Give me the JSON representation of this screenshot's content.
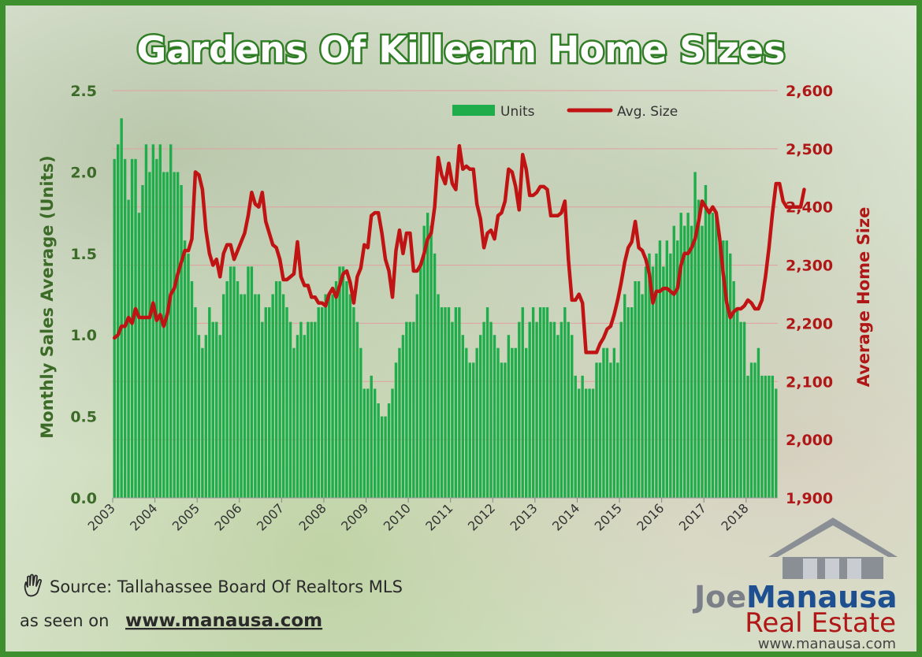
{
  "chart_data": {
    "type": "bar",
    "title": "Gardens Of Killearn Home Sizes",
    "ylabel": "Monthly Sales Average (Units)",
    "y2label": "Average Home Size",
    "ylim": [
      0,
      2.5
    ],
    "y2lim": [
      1900,
      2600
    ],
    "yticks": [
      "0.0",
      "0.5",
      "1.0",
      "1.5",
      "2.0",
      "2.5"
    ],
    "y2ticks": [
      "1,900",
      "2,000",
      "2,100",
      "2,200",
      "2,300",
      "2,400",
      "2,500",
      "2,600"
    ],
    "xticks": [
      "2003",
      "2004",
      "2005",
      "2006",
      "2007",
      "2008",
      "2009",
      "2010",
      "2011",
      "2012",
      "2013",
      "2014",
      "2015",
      "2016",
      "2017",
      "2018"
    ],
    "x_start": "2003-01",
    "grid": true,
    "legend_position": "top-center",
    "series": [
      {
        "name": "Units",
        "type": "bar",
        "axis": "left",
        "color": "#1fad4b",
        "values": [
          2.08,
          2.17,
          2.33,
          2.08,
          1.83,
          2.08,
          2.08,
          1.75,
          1.92,
          2.17,
          2.0,
          2.17,
          2.08,
          2.17,
          2.0,
          2.0,
          2.17,
          2.0,
          2.0,
          1.92,
          1.58,
          1.5,
          1.33,
          1.17,
          1.0,
          0.92,
          1.0,
          1.17,
          1.08,
          1.08,
          1.0,
          1.25,
          1.33,
          1.42,
          1.42,
          1.33,
          1.25,
          1.25,
          1.42,
          1.42,
          1.25,
          1.25,
          1.08,
          1.17,
          1.17,
          1.25,
          1.33,
          1.33,
          1.25,
          1.17,
          1.08,
          0.92,
          1.0,
          1.08,
          1.0,
          1.08,
          1.08,
          1.08,
          1.17,
          1.17,
          1.25,
          1.25,
          1.25,
          1.33,
          1.42,
          1.42,
          1.33,
          1.25,
          1.17,
          1.08,
          0.92,
          0.67,
          0.67,
          0.75,
          0.67,
          0.58,
          0.5,
          0.5,
          0.58,
          0.67,
          0.83,
          0.92,
          1.0,
          1.08,
          1.08,
          1.08,
          1.25,
          1.42,
          1.67,
          1.75,
          1.67,
          1.5,
          1.25,
          1.17,
          1.17,
          1.17,
          1.08,
          1.17,
          1.17,
          1.0,
          0.92,
          0.83,
          0.83,
          0.92,
          1.0,
          1.08,
          1.17,
          1.08,
          1.0,
          0.92,
          0.83,
          0.83,
          1.0,
          0.92,
          0.92,
          1.08,
          1.17,
          0.92,
          1.08,
          1.17,
          1.08,
          1.17,
          1.17,
          1.17,
          1.08,
          1.08,
          1.0,
          1.08,
          1.17,
          1.08,
          1.0,
          0.75,
          0.67,
          0.75,
          0.67,
          0.67,
          0.67,
          0.83,
          0.83,
          0.92,
          0.92,
          0.83,
          0.92,
          0.83,
          1.08,
          1.25,
          1.17,
          1.17,
          1.33,
          1.33,
          1.25,
          1.42,
          1.5,
          1.42,
          1.5,
          1.58,
          1.42,
          1.58,
          1.5,
          1.67,
          1.58,
          1.75,
          1.67,
          1.75,
          1.67,
          2.0,
          1.83,
          1.67,
          1.92,
          1.75,
          1.75,
          1.75,
          1.58,
          1.58,
          1.58,
          1.5,
          1.33,
          1.17,
          1.08,
          1.08,
          0.75,
          0.83,
          0.83,
          0.92,
          0.75,
          0.75,
          0.75,
          0.75,
          0.67
        ]
      },
      {
        "name": "Avg. Size",
        "type": "line",
        "axis": "right",
        "color": "#c01414",
        "values": [
          2175,
          2180,
          2195,
          2195,
          2210,
          2200,
          2225,
          2210,
          2210,
          2210,
          2210,
          2235,
          2205,
          2215,
          2195,
          2215,
          2250,
          2260,
          2285,
          2305,
          2325,
          2325,
          2345,
          2460,
          2455,
          2430,
          2360,
          2320,
          2300,
          2310,
          2280,
          2320,
          2335,
          2335,
          2310,
          2325,
          2340,
          2355,
          2385,
          2425,
          2405,
          2400,
          2425,
          2375,
          2355,
          2335,
          2330,
          2310,
          2275,
          2275,
          2280,
          2285,
          2340,
          2280,
          2265,
          2265,
          2245,
          2245,
          2235,
          2235,
          2230,
          2250,
          2260,
          2245,
          2265,
          2285,
          2290,
          2270,
          2235,
          2280,
          2295,
          2335,
          2330,
          2385,
          2390,
          2390,
          2355,
          2310,
          2290,
          2245,
          2325,
          2360,
          2320,
          2355,
          2355,
          2290,
          2290,
          2300,
          2320,
          2345,
          2355,
          2400,
          2485,
          2455,
          2440,
          2475,
          2440,
          2430,
          2505,
          2465,
          2470,
          2465,
          2465,
          2405,
          2380,
          2330,
          2355,
          2360,
          2345,
          2385,
          2390,
          2410,
          2465,
          2460,
          2435,
          2395,
          2490,
          2465,
          2420,
          2420,
          2425,
          2435,
          2435,
          2430,
          2385,
          2385,
          2385,
          2390,
          2410,
          2310,
          2240,
          2240,
          2250,
          2235,
          2150,
          2150,
          2150,
          2150,
          2165,
          2175,
          2190,
          2195,
          2215,
          2240,
          2270,
          2305,
          2330,
          2340,
          2375,
          2330,
          2325,
          2310,
          2285,
          2235,
          2255,
          2255,
          2260,
          2260,
          2255,
          2250,
          2260,
          2300,
          2320,
          2320,
          2330,
          2345,
          2375,
          2410,
          2400,
          2390,
          2400,
          2390,
          2345,
          2285,
          2235,
          2210,
          2220,
          2225,
          2225,
          2230,
          2240,
          2235,
          2225,
          2225,
          2240,
          2280,
          2330,
          2390,
          2440,
          2440,
          2410,
          2400,
          2400,
          2400,
          2400,
          2400,
          2430
        ]
      }
    ]
  },
  "source": {
    "text": "Source: Tallahassee Board Of Realtors MLS",
    "seen_on": "as seen on",
    "website": "www.manausa.com",
    "icon": "hand-icon"
  },
  "logo": {
    "joe": "Joe",
    "manausa": "Manausa",
    "real_estate": "Real Estate",
    "url": "www.manausa.com"
  },
  "colors": {
    "frame": "#3e8f2e",
    "bars": "#1fad4b",
    "line": "#c01414",
    "left_axis": "#3c6b28",
    "right_axis": "#b01818"
  }
}
